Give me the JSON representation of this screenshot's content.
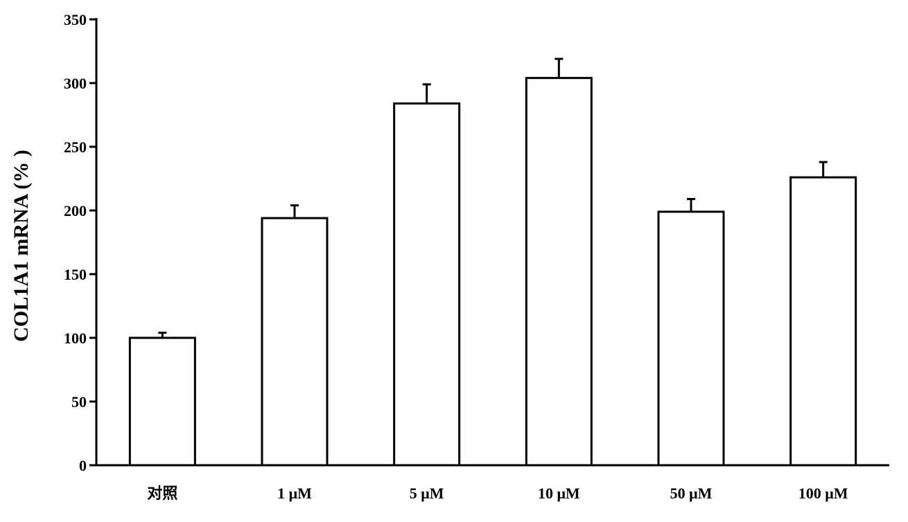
{
  "chart_data": {
    "type": "bar",
    "ylabel": "COL1A1  mRNA (% )",
    "xlabel": "",
    "ylim": [
      0,
      350
    ],
    "yticks": [
      0,
      50,
      100,
      150,
      200,
      250,
      300,
      350
    ],
    "categories": [
      "对照",
      "1 μM",
      "5 μM",
      "10 μM",
      "50 μM",
      "100 μM"
    ],
    "values": [
      100,
      194,
      284,
      304,
      199,
      226
    ],
    "error": [
      4,
      10,
      15,
      15,
      10,
      12
    ],
    "bar_fill": "#ffffff",
    "bar_stroke": "#000000",
    "grid": false,
    "legend": false
  }
}
